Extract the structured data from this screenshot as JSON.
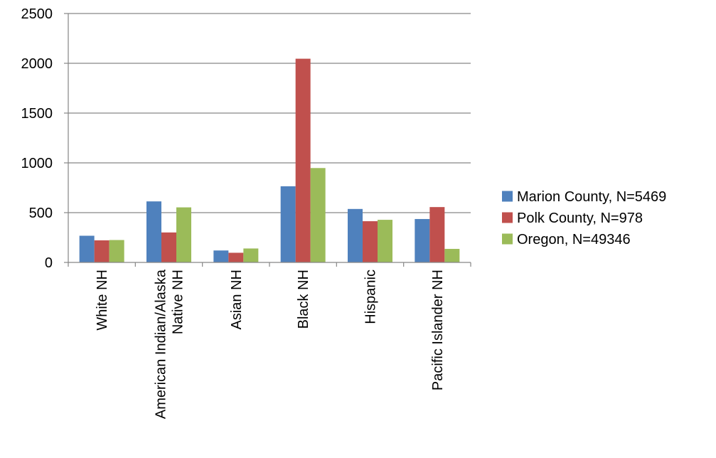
{
  "chart_data": {
    "type": "bar",
    "title": "",
    "xlabel": "",
    "ylabel": "",
    "ylim": [
      0,
      2500
    ],
    "yticks": [
      0,
      500,
      1000,
      1500,
      2000,
      2500
    ],
    "grid": true,
    "legend_position": "right",
    "categories": [
      [
        "White NH"
      ],
      [
        "American Indian/Alaska",
        "Native NH"
      ],
      [
        "Asian NH"
      ],
      [
        "Black NH"
      ],
      [
        "Hispanic"
      ],
      [
        "Pacific Islander NH"
      ]
    ],
    "series": [
      {
        "name": "Marion County, N=5469",
        "color": "#4f81bd",
        "values": [
          268,
          613,
          120,
          765,
          537,
          436
        ]
      },
      {
        "name": "Polk County, N=978",
        "color": "#c0504d",
        "values": [
          222,
          301,
          97,
          2046,
          414,
          556
        ]
      },
      {
        "name": "Oregon, N=49346",
        "color": "#9bbb59",
        "values": [
          225,
          553,
          140,
          948,
          428,
          136
        ]
      }
    ]
  }
}
